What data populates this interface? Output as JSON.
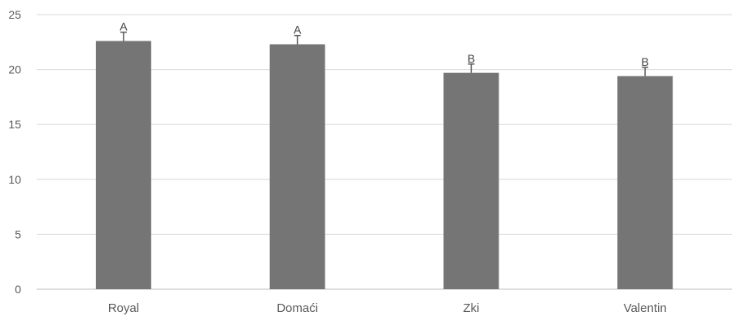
{
  "chart_data": {
    "type": "bar",
    "title": "",
    "xlabel": "",
    "ylabel": "",
    "categories": [
      "Royal",
      "Domaći",
      "Zki",
      "Valentin"
    ],
    "values": [
      22.6,
      22.3,
      19.7,
      19.4
    ],
    "error_bars": [
      0.8,
      0.8,
      0.8,
      0.8
    ],
    "annotations": [
      "A",
      "A",
      "B",
      "B"
    ],
    "ylim": [
      0,
      25
    ],
    "yticks": [
      0,
      5,
      10,
      15,
      20,
      25
    ],
    "grid": true,
    "legend": "none",
    "colors": {
      "bar": "#757575",
      "grid": "#d9d9d9",
      "axis": "#bfbfbf",
      "error_bar": "#595959"
    }
  }
}
